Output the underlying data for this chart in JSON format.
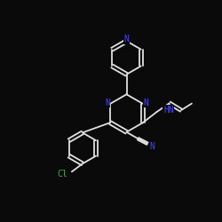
{
  "background_color": "#0a0a0a",
  "bond_color": "#e0e0e0",
  "atom_colors": {
    "N": "#4444ff",
    "Cl": "#44aa44",
    "C": "#e0e0e0"
  }
}
